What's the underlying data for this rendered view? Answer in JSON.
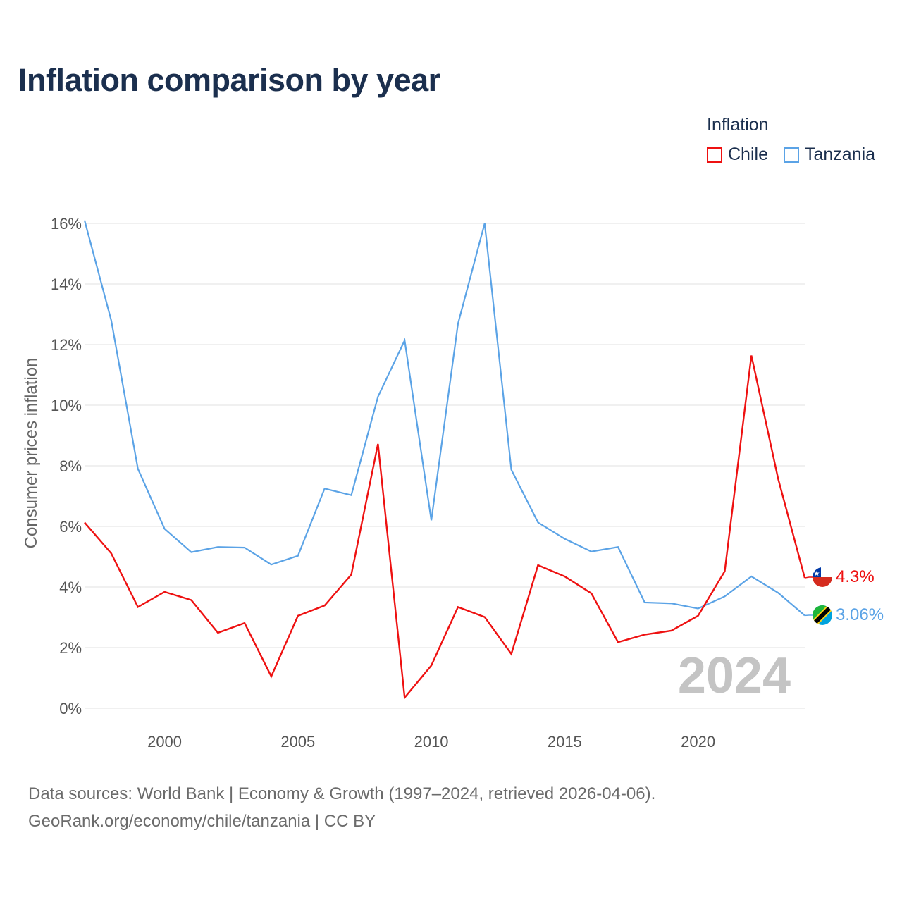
{
  "chart_data": {
    "type": "line",
    "title": "Inflation comparison by year",
    "legend_title": "Inflation",
    "legend_position": "top-right",
    "ylabel": "Consumer prices inflation",
    "xlabel": "",
    "x": [
      1997,
      1998,
      1999,
      2000,
      2001,
      2002,
      2003,
      2004,
      2005,
      2006,
      2007,
      2008,
      2009,
      2010,
      2011,
      2012,
      2013,
      2014,
      2015,
      2016,
      2017,
      2018,
      2019,
      2020,
      2021,
      2022,
      2023,
      2024
    ],
    "xlim": [
      1997,
      2024
    ],
    "ylim": [
      0,
      16
    ],
    "x_ticks": [
      2000,
      2005,
      2010,
      2015,
      2020
    ],
    "y_ticks": [
      0,
      2,
      4,
      6,
      8,
      10,
      12,
      14,
      16
    ],
    "y_tick_labels": [
      "0%",
      "2%",
      "4%",
      "6%",
      "8%",
      "10%",
      "12%",
      "14%",
      "16%"
    ],
    "series": [
      {
        "name": "Chile",
        "color": "#ee1111",
        "values": [
          6.13,
          5.11,
          3.34,
          3.84,
          3.57,
          2.49,
          2.81,
          1.05,
          3.05,
          3.39,
          4.41,
          8.72,
          0.35,
          1.41,
          3.34,
          3.01,
          1.79,
          4.72,
          4.35,
          3.79,
          2.18,
          2.43,
          2.56,
          3.05,
          4.52,
          11.64,
          7.58,
          4.3
        ],
        "end_label": "4.3%",
        "flag": "chile-flag"
      },
      {
        "name": "Tanzania",
        "color": "#5ba3e6",
        "values": [
          16.1,
          12.8,
          7.9,
          5.92,
          5.15,
          5.32,
          5.3,
          4.74,
          5.03,
          7.25,
          7.03,
          10.28,
          12.14,
          6.2,
          12.69,
          16.0,
          7.87,
          6.13,
          5.59,
          5.17,
          5.32,
          3.49,
          3.46,
          3.29,
          3.69,
          4.35,
          3.81,
          3.06
        ],
        "end_label": "3.06%",
        "flag": "tanzania-flag"
      }
    ],
    "current_year_label": "2024",
    "grid": true
  },
  "source": {
    "line1": "Data sources: World Bank | Economy & Growth (1997–2024, retrieved 2026-04-06).",
    "line2": "GeoRank.org/economy/chile/tanzania | CC BY"
  }
}
